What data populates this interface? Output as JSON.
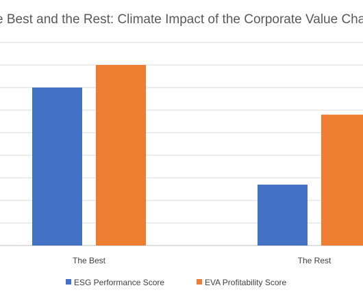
{
  "chart_data": {
    "type": "bar",
    "title": "e Best and the Rest: Climate Impact of the Corporate Value Cha",
    "categories": [
      "The Best",
      "The Rest"
    ],
    "series": [
      {
        "name": "ESG Performance Score",
        "values": [
          7.0,
          2.7
        ],
        "color": "#4472C4"
      },
      {
        "name": "EVA Profitability Score",
        "values": [
          8.0,
          5.8
        ],
        "color": "#ED7D31"
      }
    ],
    "ylim": [
      0,
      9
    ],
    "grid": true,
    "legend": "bottom",
    "xlabel": "",
    "ylabel": ""
  }
}
